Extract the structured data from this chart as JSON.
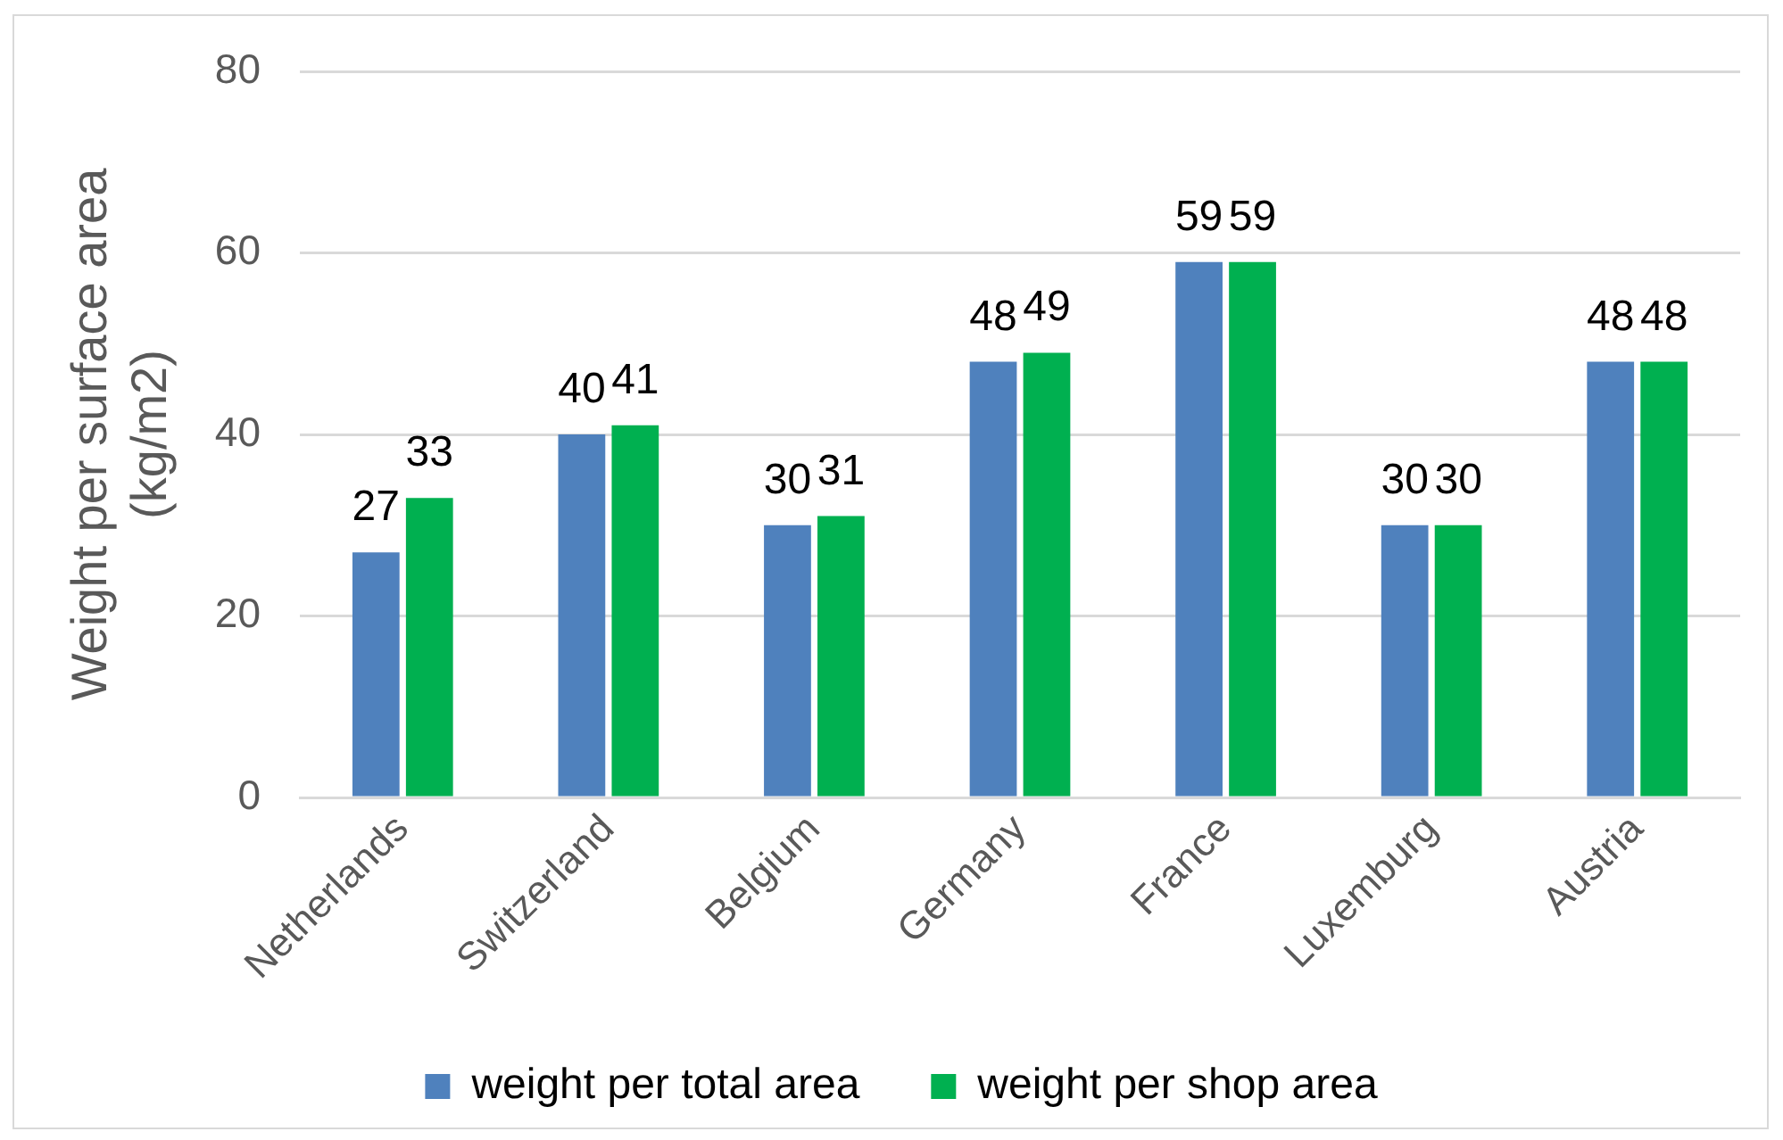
{
  "chart_data": {
    "type": "bar",
    "ylabel": "Weight per surface area (kg/m2)",
    "categories": [
      "Netherlands",
      "Switzerland",
      "Belgium",
      "Germany",
      "France",
      "Luxemburg",
      "Austria"
    ],
    "series": [
      {
        "name": "weight per total area",
        "color": "#4f81bd",
        "values": [
          27,
          40,
          30,
          48,
          59,
          30,
          48
        ]
      },
      {
        "name": "weight per shop area",
        "color": "#00b050",
        "values": [
          33,
          41,
          31,
          49,
          59,
          30,
          48
        ]
      }
    ],
    "ylim": [
      0,
      80
    ],
    "yticks": [
      0,
      20,
      40,
      60,
      80
    ],
    "grid": "y",
    "legend": "bottom",
    "data_labels": true
  }
}
